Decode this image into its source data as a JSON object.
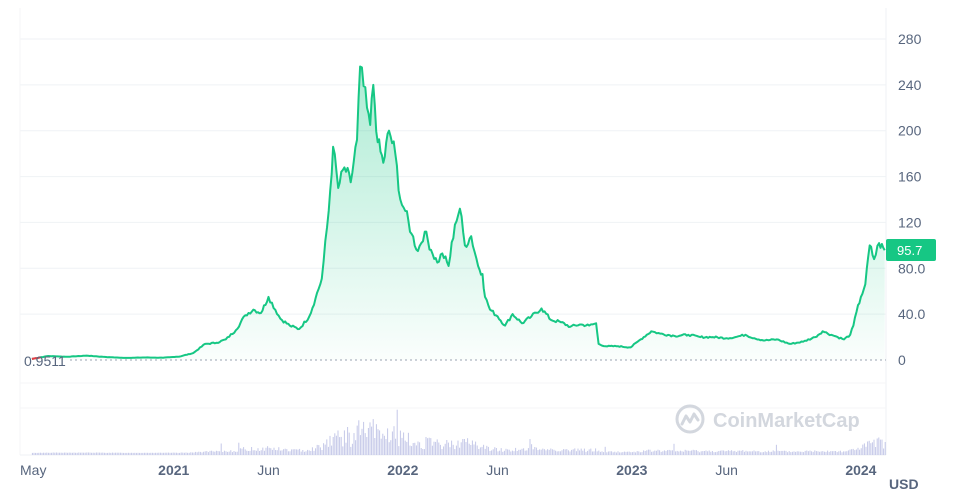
{
  "chart_data": {
    "type": "area",
    "y_ticks": [
      "0",
      "40.0",
      "80.0",
      "120",
      "160",
      "200",
      "240",
      "280"
    ],
    "y_tick_values": [
      0,
      40,
      80,
      120,
      160,
      200,
      240,
      280
    ],
    "ylim": [
      0,
      295
    ],
    "x_ticks": [
      {
        "label": "May",
        "date": "2020-05-01",
        "bold": false
      },
      {
        "label": "2021",
        "date": "2021-01-01",
        "bold": true
      },
      {
        "label": "Jun",
        "date": "2021-06-01",
        "bold": false
      },
      {
        "label": "2022",
        "date": "2022-01-01",
        "bold": true
      },
      {
        "label": "Jun",
        "date": "2022-06-01",
        "bold": false
      },
      {
        "label": "2023",
        "date": "2023-01-01",
        "bold": true
      },
      {
        "label": "Jun",
        "date": "2023-06-01",
        "bold": false
      },
      {
        "label": "2024",
        "date": "2024-01-01",
        "bold": true
      }
    ],
    "xlim": [
      "2020-05-01",
      "2024-02-10"
    ],
    "unit": "USD",
    "start_value_label": "0.9511",
    "current_value_label": "95.7",
    "grid": true,
    "colors": {
      "line": "#16c784",
      "start_segment": "#ea3943",
      "axis_text": "#58667e",
      "volume": "#c4c8e8"
    },
    "series": [
      {
        "x": [
          "2020-05-20",
          "2020-06-15",
          "2020-07-15",
          "2020-08-15",
          "2020-09-15",
          "2020-10-15",
          "2020-11-15",
          "2020-12-15",
          "2021-01-10",
          "2021-02-01",
          "2021-02-20",
          "2021-03-10",
          "2021-03-25",
          "2021-04-10",
          "2021-04-25",
          "2021-05-08",
          "2021-05-20",
          "2021-06-01",
          "2021-06-20",
          "2021-07-05",
          "2021-07-20",
          "2021-08-05",
          "2021-08-15",
          "2021-08-25",
          "2021-09-05",
          "2021-09-12",
          "2021-09-20",
          "2021-09-30",
          "2021-10-10",
          "2021-10-20",
          "2021-10-25",
          "2021-11-05",
          "2021-11-10",
          "2021-11-15",
          "2021-11-22",
          "2021-12-01",
          "2021-12-10",
          "2021-12-20",
          "2021-12-28",
          "2022-01-05",
          "2022-01-15",
          "2022-01-25",
          "2022-02-05",
          "2022-02-15",
          "2022-02-25",
          "2022-03-05",
          "2022-03-15",
          "2022-03-25",
          "2022-04-02",
          "2022-04-10",
          "2022-04-20",
          "2022-05-01",
          "2022-05-08",
          "2022-05-12",
          "2022-05-20",
          "2022-06-01",
          "2022-06-13",
          "2022-06-25",
          "2022-07-10",
          "2022-07-25",
          "2022-08-10",
          "2022-08-25",
          "2022-09-10",
          "2022-09-25",
          "2022-10-10",
          "2022-10-25",
          "2022-11-05",
          "2022-11-09",
          "2022-11-20",
          "2022-12-10",
          "2022-12-30",
          "2023-01-15",
          "2023-02-01",
          "2023-02-15",
          "2023-03-10",
          "2023-04-01",
          "2023-04-20",
          "2023-05-10",
          "2023-06-01",
          "2023-06-15",
          "2023-07-01",
          "2023-07-15",
          "2023-08-01",
          "2023-08-20",
          "2023-09-10",
          "2023-10-01",
          "2023-10-20",
          "2023-11-01",
          "2023-11-15",
          "2023-11-25",
          "2023-12-05",
          "2023-12-15",
          "2023-12-20",
          "2023-12-25",
          "2024-01-01",
          "2024-01-08",
          "2024-01-15",
          "2024-01-22",
          "2024-01-30",
          "2024-02-08"
        ],
        "values": [
          1.0,
          3.5,
          2.8,
          3.8,
          2.6,
          1.8,
          2.2,
          2.0,
          3.0,
          6.0,
          14,
          15,
          18,
          26,
          39,
          44,
          41,
          55,
          36,
          30,
          27,
          38,
          54,
          71,
          130,
          186,
          150,
          168,
          155,
          192,
          256,
          220,
          205,
          240,
          190,
          172,
          200,
          180,
          140,
          130,
          110,
          95,
          112,
          96,
          85,
          93,
          82,
          118,
          132,
          100,
          108,
          82,
          75,
          55,
          44,
          38,
          30,
          40,
          32,
          38,
          45,
          35,
          33,
          29,
          31,
          30,
          32,
          14,
          12,
          12,
          11,
          18,
          25,
          23,
          21,
          22,
          20,
          20,
          19,
          20,
          22,
          19,
          17,
          18,
          14,
          16,
          20,
          25,
          22,
          20,
          18,
          22,
          30,
          42,
          55,
          66,
          100,
          88,
          102,
          95.7
        ]
      }
    ],
    "volume": {
      "note_unit": "relative",
      "x_range": [
        "2020-05-20",
        "2024-02-08"
      ]
    }
  },
  "watermark": {
    "text": "CoinMarketCap",
    "icon": "coinmarketcap-logo-icon"
  }
}
